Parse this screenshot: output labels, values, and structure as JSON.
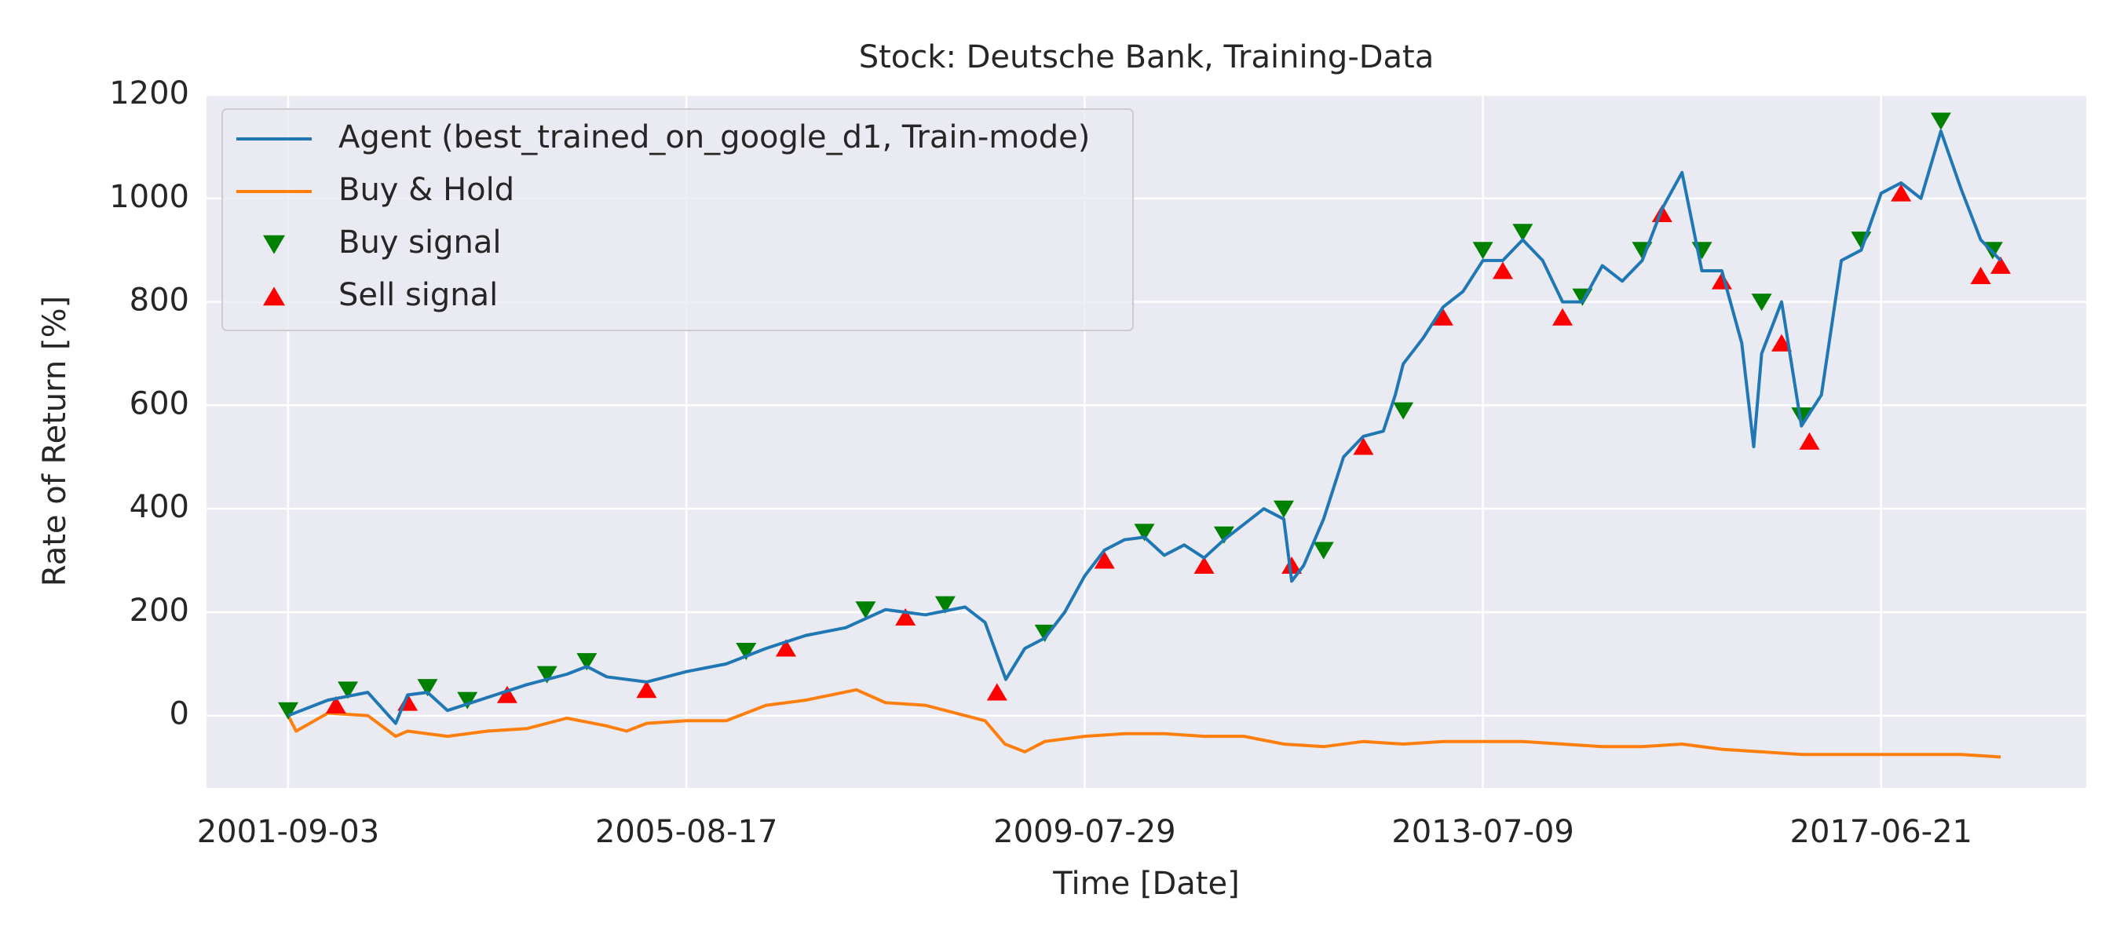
{
  "chart_data": {
    "type": "line",
    "title": "Stock: Deutsche Bank, Training-Data",
    "x_label": "Time [Date]",
    "y_label": "Rate of Return [%]",
    "xlim": [
      -205,
      4515
    ],
    "ylim": [
      -140,
      1200
    ],
    "xticks": [
      {
        "value": 0,
        "label": "2001-09-03"
      },
      {
        "value": 1000,
        "label": "2005-08-17"
      },
      {
        "value": 2000,
        "label": "2009-07-29"
      },
      {
        "value": 3000,
        "label": "2013-07-09"
      },
      {
        "value": 4000,
        "label": "2017-06-21"
      }
    ],
    "yticks": [
      0,
      200,
      400,
      600,
      800,
      1000,
      1200
    ],
    "grid": true,
    "legend": "upper left",
    "series": [
      {
        "name": "Agent (best_trained_on_google_d1, Train-mode)",
        "color": "#1f77b4",
        "kind": "line",
        "x": [
          0,
          100,
          200,
          270,
          300,
          350,
          400,
          500,
          600,
          700,
          750,
          800,
          900,
          1000,
          1100,
          1200,
          1300,
          1400,
          1500,
          1600,
          1700,
          1750,
          1802,
          1850,
          1900,
          1950,
          2000,
          2050,
          2100,
          2150,
          2200,
          2250,
          2300,
          2350,
          2400,
          2450,
          2500,
          2520,
          2550,
          2600,
          2650,
          2700,
          2750,
          2780,
          2800,
          2850,
          2900,
          2950,
          3000,
          3050,
          3100,
          3150,
          3200,
          3250,
          3300,
          3350,
          3400,
          3450,
          3500,
          3550,
          3600,
          3650,
          3680,
          3700,
          3750,
          3800,
          3850,
          3900,
          3950,
          4000,
          4050,
          4100,
          4150,
          4200,
          4250,
          4300
        ],
        "values": [
          0,
          30,
          45,
          -15,
          40,
          45,
          10,
          35,
          60,
          80,
          95,
          75,
          65,
          85,
          100,
          130,
          155,
          170,
          205,
          195,
          210,
          180,
          70,
          130,
          150,
          200,
          270,
          320,
          340,
          345,
          310,
          330,
          305,
          340,
          370,
          400,
          380,
          260,
          290,
          380,
          500,
          540,
          550,
          620,
          680,
          730,
          790,
          820,
          880,
          880,
          920,
          880,
          800,
          800,
          870,
          840,
          880,
          980,
          1050,
          860,
          860,
          720,
          520,
          700,
          800,
          560,
          620,
          880,
          900,
          1010,
          1030,
          1000,
          1130,
          1020,
          920,
          880
        ]
      },
      {
        "name": "Buy & Hold",
        "color": "#ff7f0e",
        "kind": "line",
        "x": [
          0,
          20,
          100,
          200,
          270,
          300,
          400,
          500,
          600,
          700,
          800,
          850,
          900,
          1000,
          1100,
          1200,
          1300,
          1427,
          1500,
          1600,
          1700,
          1750,
          1800,
          1850,
          1900,
          2000,
          2100,
          2200,
          2300,
          2400,
          2500,
          2600,
          2700,
          2800,
          2900,
          3000,
          3100,
          3200,
          3300,
          3400,
          3500,
          3600,
          3700,
          3800,
          3900,
          4000,
          4100,
          4200,
          4300
        ],
        "values": [
          0,
          -30,
          5,
          0,
          -40,
          -30,
          -40,
          -30,
          -25,
          -5,
          -20,
          -30,
          -15,
          -10,
          -10,
          20,
          30,
          50,
          25,
          20,
          0,
          -10,
          -55,
          -70,
          -50,
          -40,
          -35,
          -35,
          -40,
          -40,
          -55,
          -60,
          -50,
          -55,
          -50,
          -50,
          -50,
          -55,
          -60,
          -60,
          -55,
          -65,
          -70,
          -75,
          -75,
          -75,
          -75,
          -75,
          -80
        ]
      },
      {
        "name": "Buy signal",
        "color": "green",
        "kind": "scatter",
        "marker": "triangle-down",
        "x": [
          0,
          150,
          350,
          450,
          650,
          750,
          1150,
          1450,
          1650,
          1900,
          2150,
          2350,
          2500,
          2600,
          2800,
          3000,
          3100,
          3250,
          3400,
          3550,
          3700,
          3800,
          3950,
          4150,
          4280
        ],
        "values": [
          10,
          50,
          55,
          30,
          80,
          105,
          125,
          205,
          215,
          160,
          355,
          350,
          400,
          320,
          590,
          900,
          935,
          810,
          900,
          900,
          800,
          580,
          920,
          1150,
          900
        ]
      },
      {
        "name": "Sell signal",
        "color": "red",
        "kind": "scatter",
        "marker": "triangle-up",
        "x": [
          120,
          300,
          550,
          900,
          1250,
          1550,
          1780,
          2050,
          2300,
          2520,
          2700,
          2900,
          3050,
          3200,
          3450,
          3600,
          3750,
          3820,
          4050,
          4250,
          4300
        ],
        "values": [
          20,
          25,
          40,
          50,
          130,
          190,
          45,
          300,
          290,
          290,
          520,
          770,
          860,
          770,
          970,
          840,
          720,
          530,
          1010,
          850,
          870
        ]
      }
    ]
  }
}
